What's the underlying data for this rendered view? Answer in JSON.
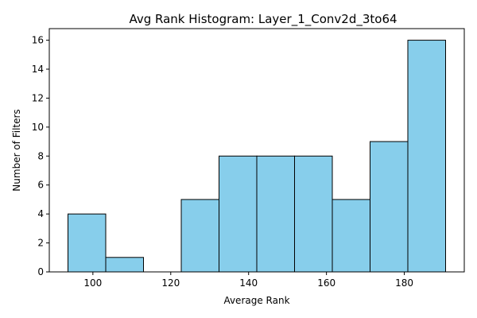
{
  "chart_data": {
    "type": "bar",
    "title": "Avg Rank Histogram: Layer_1_Conv2d_3to64",
    "xlabel": "Average Rank",
    "ylabel": "Number of Filters",
    "bins": [
      {
        "start": 93.6,
        "end": 103.3,
        "count": 4
      },
      {
        "start": 103.3,
        "end": 113.0,
        "count": 1
      },
      {
        "start": 113.0,
        "end": 122.7,
        "count": 0
      },
      {
        "start": 122.7,
        "end": 132.4,
        "count": 5
      },
      {
        "start": 132.4,
        "end": 142.1,
        "count": 8
      },
      {
        "start": 142.1,
        "end": 151.8,
        "count": 8
      },
      {
        "start": 151.8,
        "end": 161.5,
        "count": 8
      },
      {
        "start": 161.5,
        "end": 171.2,
        "count": 5
      },
      {
        "start": 171.2,
        "end": 180.9,
        "count": 9
      },
      {
        "start": 180.9,
        "end": 190.6,
        "count": 16
      }
    ],
    "xlim": [
      88.8,
      195.4
    ],
    "ylim": [
      0,
      16.8
    ],
    "xticks": [
      100,
      120,
      140,
      160,
      180
    ],
    "yticks": [
      0,
      2,
      4,
      6,
      8,
      10,
      12,
      14,
      16
    ],
    "bar_color": "#87ceeb",
    "edge_color": "#000000",
    "grid": false,
    "legend": false
  }
}
